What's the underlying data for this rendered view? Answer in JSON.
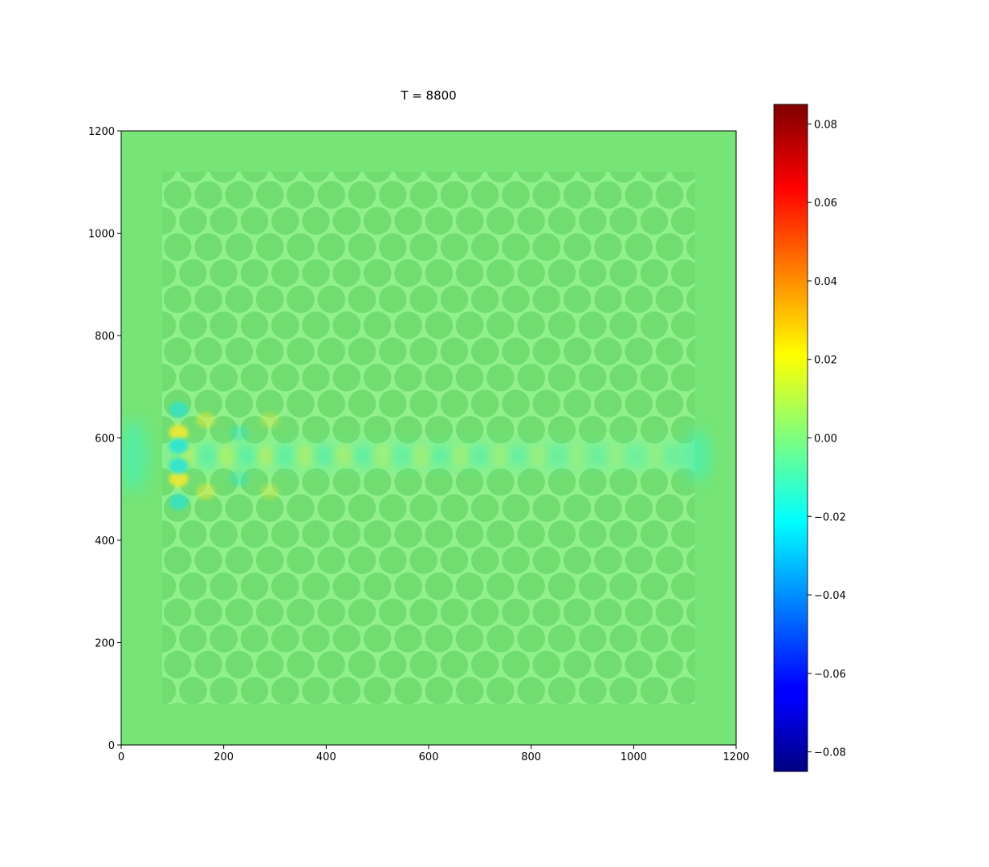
{
  "chart_data": {
    "type": "heatmap",
    "title": "T = 8800",
    "xlabel": "",
    "ylabel": "",
    "xlim": [
      0,
      1200
    ],
    "ylim": [
      0,
      1200
    ],
    "x_ticks": [
      0,
      200,
      400,
      600,
      800,
      1000,
      1200
    ],
    "y_ticks": [
      0,
      200,
      400,
      600,
      800,
      1000,
      1200
    ],
    "colormap": "jet",
    "colorbar": {
      "vmin": -0.085,
      "vmax": 0.085,
      "ticks": [
        -0.08,
        -0.06,
        -0.04,
        -0.02,
        0.0,
        0.02,
        0.04,
        0.06,
        0.08
      ],
      "tick_labels": [
        "−0.08",
        "−0.06",
        "−0.04",
        "−0.02",
        "0.00",
        "0.02",
        "0.04",
        "0.06",
        "0.08"
      ],
      "position": "right"
    },
    "crystal": {
      "lattice": "triangular",
      "region_x": [
        80,
        1120
      ],
      "region_y": [
        80,
        1120
      ],
      "row_spacing": 51,
      "column_spacing": 60,
      "hole_radius": 27,
      "waveguide_y": 565
    },
    "field_colors": {
      "background": "#76e476",
      "holes": "#71dd71",
      "veins": "#8ff08c",
      "mode_negative": "#4cefb0",
      "mode_positive": "#d4f04a",
      "source_positive": "#f0e830",
      "source_negative": "#26e3d8"
    }
  }
}
